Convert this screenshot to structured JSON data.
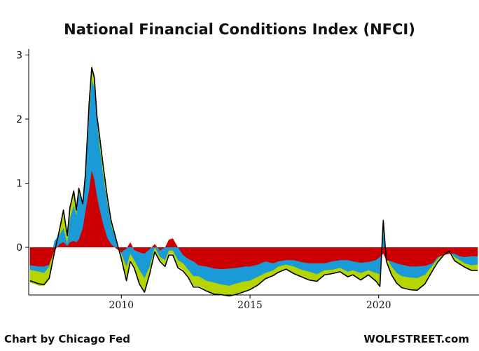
{
  "chart_data": {
    "type": "area",
    "title": "National Financial Conditions Index (NFCI)",
    "xlabel": "",
    "ylabel": "",
    "xlim": [
      2006.4,
      2023.9
    ],
    "ylim": [
      -0.78,
      3.05
    ],
    "yticks": [
      0,
      1,
      2,
      3
    ],
    "xticks": [
      2010,
      2015,
      2020
    ],
    "grid": false,
    "legend": "none",
    "x": [
      2006.45,
      2006.8,
      2007.0,
      2007.2,
      2007.4,
      2007.6,
      2007.75,
      2007.9,
      2008.0,
      2008.15,
      2008.25,
      2008.35,
      2008.5,
      2008.6,
      2008.75,
      2008.85,
      2008.95,
      2009.05,
      2009.15,
      2009.3,
      2009.45,
      2009.6,
      2009.8,
      2010.0,
      2010.2,
      2010.35,
      2010.5,
      2010.7,
      2010.9,
      2011.1,
      2011.3,
      2011.5,
      2011.7,
      2011.85,
      2012.0,
      2012.2,
      2012.4,
      2012.6,
      2012.8,
      2013.0,
      2013.3,
      2013.6,
      2013.9,
      2014.2,
      2014.5,
      2014.8,
      2015.0,
      2015.3,
      2015.6,
      2015.9,
      2016.1,
      2016.4,
      2016.7,
      2017.0,
      2017.3,
      2017.6,
      2017.9,
      2018.2,
      2018.5,
      2018.8,
      2019.0,
      2019.3,
      2019.6,
      2019.9,
      2020.05,
      2020.18,
      2020.3,
      2020.5,
      2020.7,
      2020.9,
      2021.2,
      2021.5,
      2021.8,
      2022.1,
      2022.3,
      2022.55,
      2022.75,
      2022.95,
      2023.15,
      2023.35,
      2023.6,
      2023.85
    ],
    "series": [
      {
        "name": "",
        "color": "#cc0000",
        "values": [
          -0.28,
          -0.3,
          -0.3,
          -0.27,
          -0.05,
          0.05,
          0.08,
          0.02,
          0.08,
          0.1,
          0.08,
          0.12,
          0.3,
          0.55,
          0.9,
          1.2,
          1.05,
          0.8,
          0.6,
          0.35,
          0.15,
          0.05,
          -0.02,
          -0.08,
          -0.02,
          0.08,
          -0.04,
          -0.08,
          -0.1,
          -0.03,
          0.05,
          -0.05,
          0.0,
          0.12,
          0.14,
          0.0,
          -0.12,
          -0.18,
          -0.22,
          -0.28,
          -0.3,
          -0.33,
          -0.34,
          -0.33,
          -0.32,
          -0.3,
          -0.3,
          -0.27,
          -0.22,
          -0.25,
          -0.22,
          -0.2,
          -0.2,
          -0.23,
          -0.25,
          -0.25,
          -0.25,
          -0.22,
          -0.2,
          -0.2,
          -0.22,
          -0.24,
          -0.23,
          -0.2,
          -0.15,
          -0.1,
          -0.2,
          -0.22,
          -0.25,
          -0.27,
          -0.3,
          -0.3,
          -0.29,
          -0.25,
          -0.15,
          -0.12,
          -0.1,
          -0.1,
          -0.14,
          -0.15,
          -0.14,
          -0.14
        ]
      },
      {
        "name": "",
        "color": "#1a9bd7",
        "values": [
          -0.35,
          -0.38,
          -0.4,
          -0.3,
          0.1,
          0.2,
          0.3,
          0.05,
          0.45,
          0.65,
          0.5,
          0.85,
          0.7,
          1.0,
          2.05,
          2.6,
          2.5,
          2.0,
          1.6,
          1.1,
          0.7,
          0.35,
          0.1,
          -0.1,
          -0.3,
          -0.1,
          -0.2,
          -0.35,
          -0.48,
          -0.3,
          0.0,
          -0.15,
          -0.2,
          -0.05,
          -0.05,
          -0.2,
          -0.25,
          -0.35,
          -0.45,
          -0.45,
          -0.52,
          -0.55,
          -0.58,
          -0.6,
          -0.56,
          -0.53,
          -0.52,
          -0.46,
          -0.4,
          -0.36,
          -0.3,
          -0.27,
          -0.3,
          -0.35,
          -0.38,
          -0.42,
          -0.36,
          -0.35,
          -0.32,
          -0.38,
          -0.36,
          -0.4,
          -0.36,
          -0.4,
          -0.42,
          0.38,
          -0.15,
          -0.3,
          -0.4,
          -0.45,
          -0.47,
          -0.48,
          -0.43,
          -0.28,
          -0.18,
          -0.08,
          -0.05,
          -0.15,
          -0.2,
          -0.25,
          -0.28,
          -0.27
        ]
      },
      {
        "name": "",
        "color": "#b6d400",
        "values": [
          -0.55,
          -0.6,
          -0.6,
          -0.5,
          -0.1,
          0.3,
          0.6,
          0.2,
          0.65,
          0.9,
          0.6,
          0.95,
          0.7,
          1.15,
          2.3,
          2.85,
          2.7,
          2.1,
          1.8,
          1.3,
          0.85,
          0.45,
          0.15,
          -0.15,
          -0.5,
          -0.2,
          -0.3,
          -0.55,
          -0.68,
          -0.4,
          -0.05,
          -0.2,
          -0.28,
          -0.1,
          -0.1,
          -0.3,
          -0.35,
          -0.45,
          -0.6,
          -0.6,
          -0.67,
          -0.72,
          -0.73,
          -0.75,
          -0.72,
          -0.68,
          -0.65,
          -0.58,
          -0.48,
          -0.43,
          -0.38,
          -0.33,
          -0.4,
          -0.45,
          -0.5,
          -0.52,
          -0.42,
          -0.4,
          -0.37,
          -0.45,
          -0.42,
          -0.5,
          -0.42,
          -0.52,
          -0.6,
          0.45,
          -0.2,
          -0.42,
          -0.55,
          -0.62,
          -0.65,
          -0.66,
          -0.56,
          -0.35,
          -0.22,
          -0.1,
          -0.05,
          -0.2,
          -0.25,
          -0.3,
          -0.35,
          -0.35
        ]
      },
      {
        "name": "",
        "color": "#000000",
        "values": [
          -0.52,
          -0.57,
          -0.58,
          -0.48,
          -0.08,
          0.28,
          0.58,
          0.18,
          0.62,
          0.88,
          0.58,
          0.92,
          0.68,
          1.12,
          2.25,
          2.8,
          2.65,
          2.05,
          1.75,
          1.25,
          0.8,
          0.42,
          0.12,
          -0.18,
          -0.52,
          -0.22,
          -0.32,
          -0.57,
          -0.7,
          -0.42,
          -0.07,
          -0.22,
          -0.3,
          -0.12,
          -0.12,
          -0.32,
          -0.37,
          -0.47,
          -0.62,
          -0.62,
          -0.68,
          -0.73,
          -0.74,
          -0.76,
          -0.73,
          -0.69,
          -0.66,
          -0.59,
          -0.49,
          -0.44,
          -0.39,
          -0.34,
          -0.41,
          -0.46,
          -0.51,
          -0.53,
          -0.43,
          -0.41,
          -0.38,
          -0.46,
          -0.43,
          -0.51,
          -0.43,
          -0.53,
          -0.61,
          0.42,
          -0.22,
          -0.43,
          -0.56,
          -0.63,
          -0.66,
          -0.67,
          -0.57,
          -0.36,
          -0.23,
          -0.11,
          -0.06,
          -0.21,
          -0.26,
          -0.31,
          -0.36,
          -0.36
        ]
      }
    ]
  },
  "credits": {
    "source": "Chart by Chicago Fed",
    "brand": "WOLFSTREET.com"
  }
}
